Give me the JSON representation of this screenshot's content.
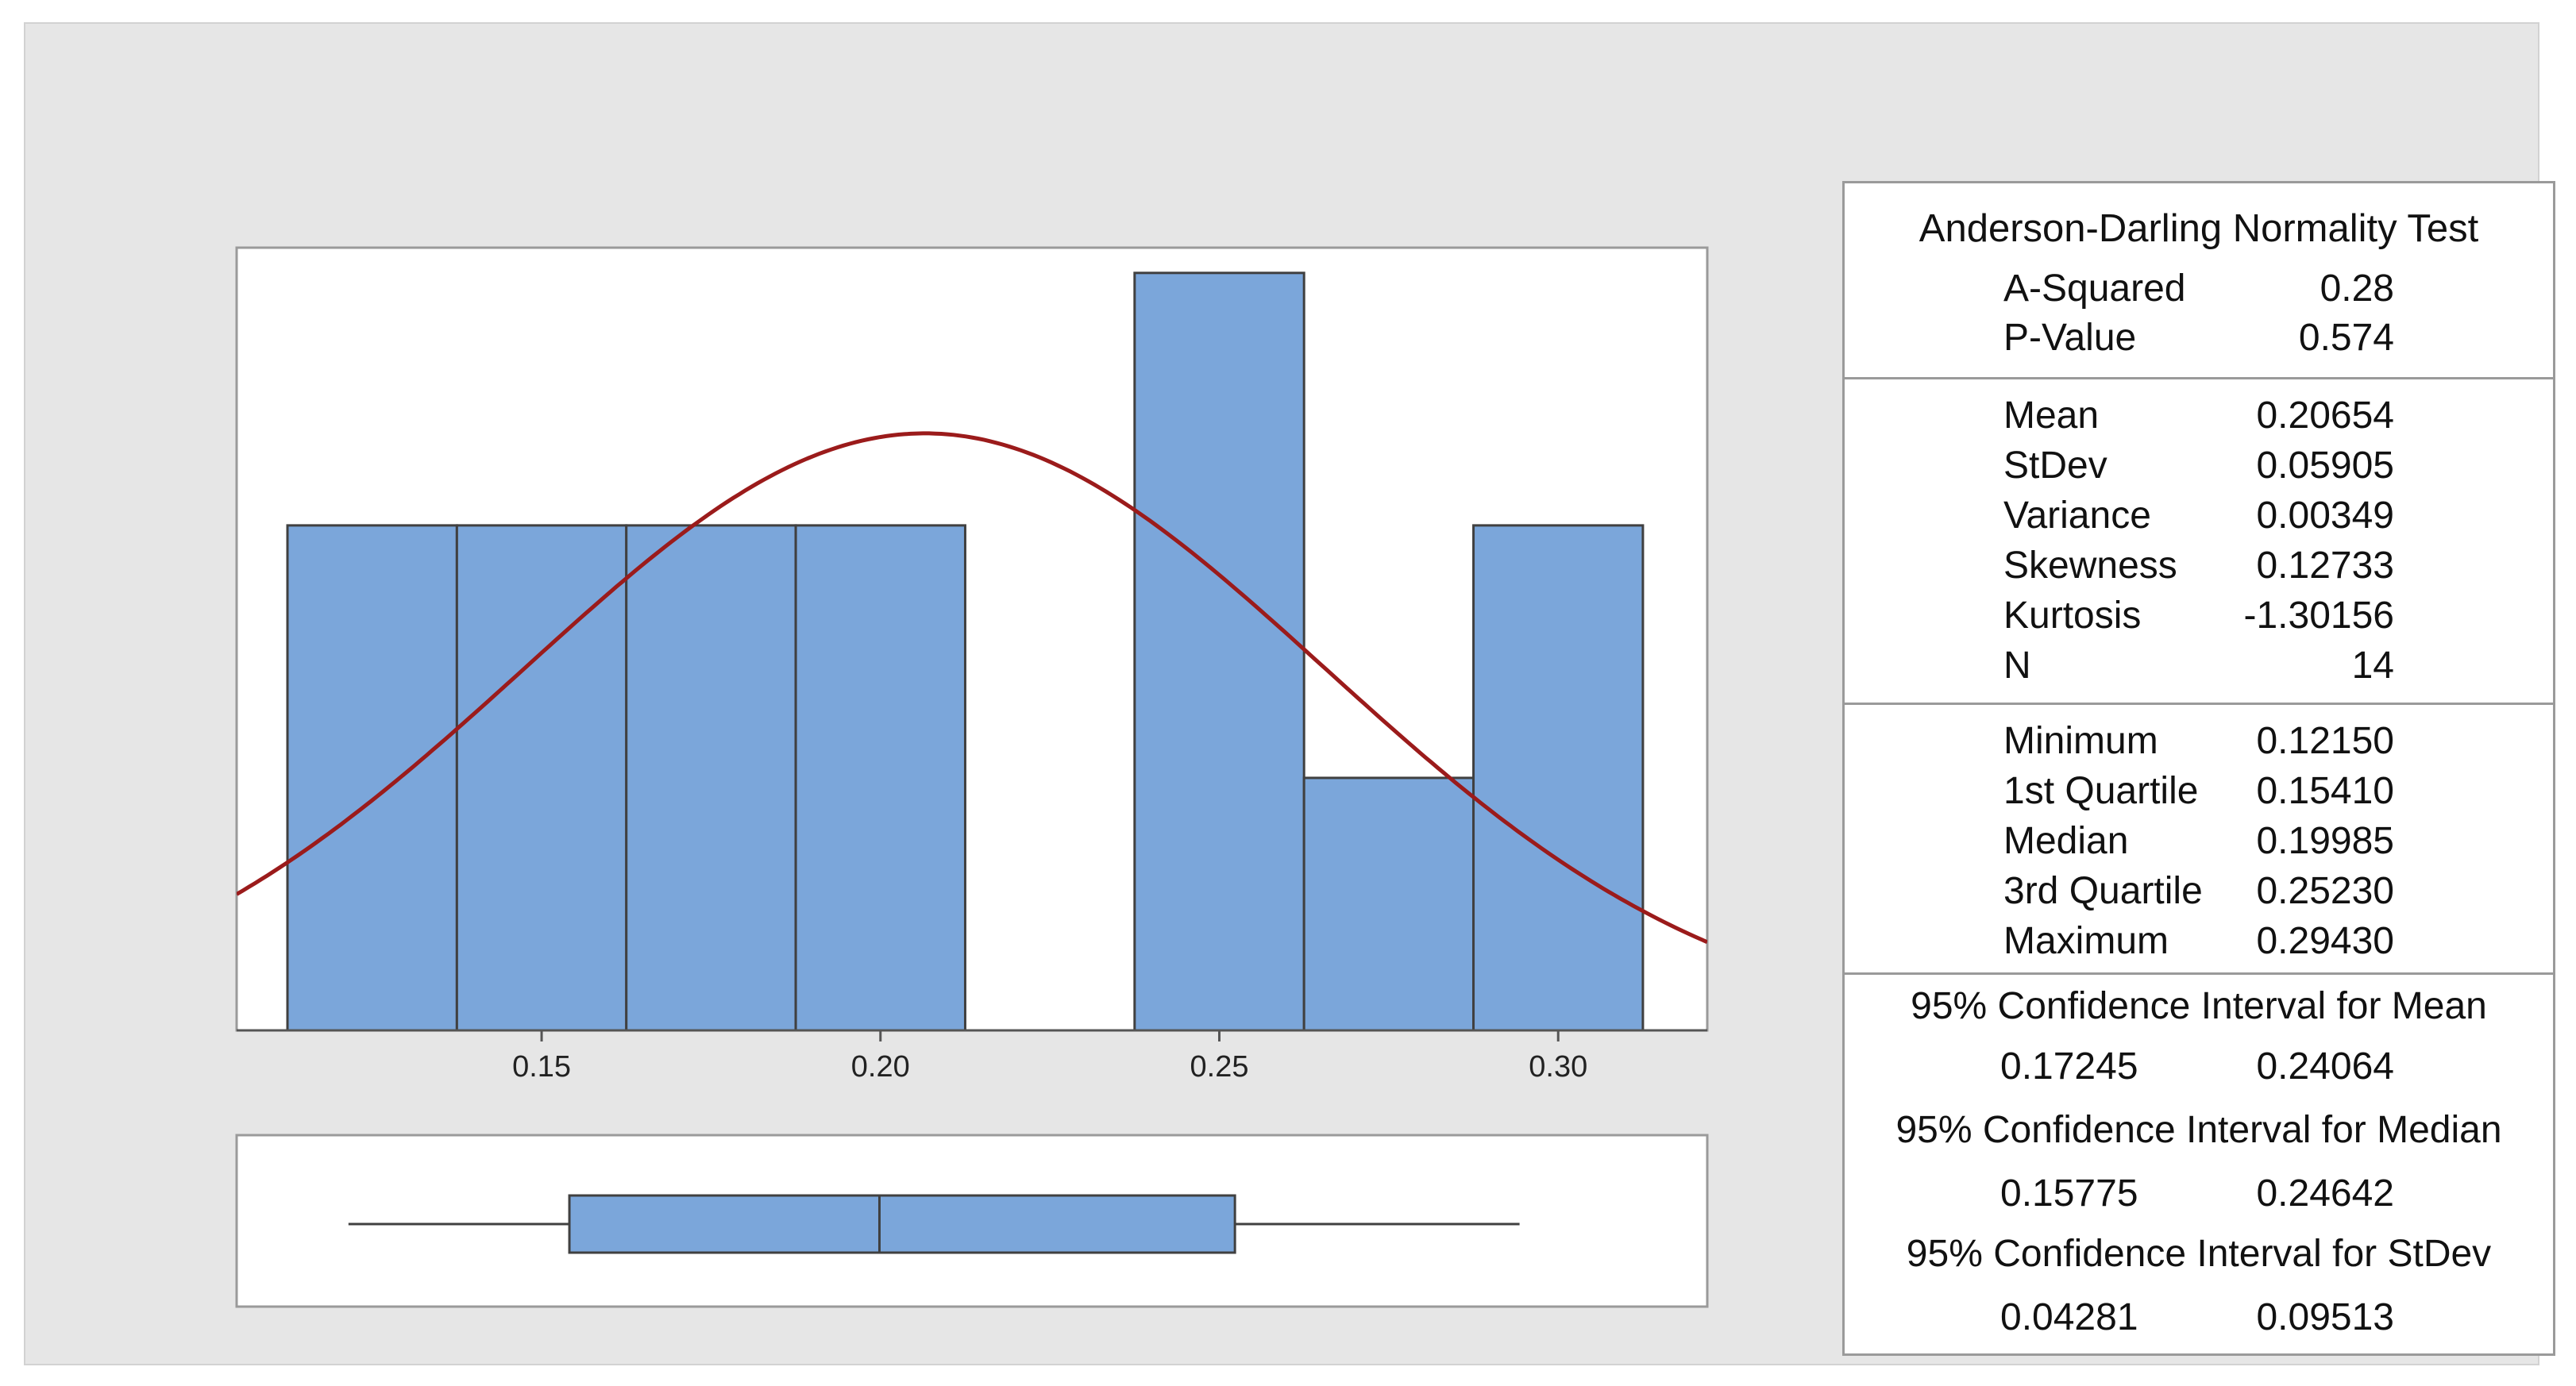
{
  "chart_data": [
    {
      "type": "histogram",
      "bins": [
        {
          "x0": 0.1125,
          "x1": 0.1375,
          "count": 2
        },
        {
          "x0": 0.1375,
          "x1": 0.1625,
          "count": 2
        },
        {
          "x0": 0.1625,
          "x1": 0.1875,
          "count": 2
        },
        {
          "x0": 0.1875,
          "x1": 0.2125,
          "count": 2
        },
        {
          "x0": 0.2125,
          "x1": 0.2375,
          "count": 0
        },
        {
          "x0": 0.2375,
          "x1": 0.2625,
          "count": 3
        },
        {
          "x0": 0.2625,
          "x1": 0.2875,
          "count": 1
        },
        {
          "x0": 0.2875,
          "x1": 0.3125,
          "count": 2
        }
      ],
      "x_ticks": [
        "0.15",
        "0.20",
        "0.25",
        "0.30"
      ],
      "x_tick_values": [
        0.15,
        0.2,
        0.25,
        0.3
      ],
      "xlim": [
        0.105,
        0.322
      ],
      "ylim": [
        0,
        3.1
      ],
      "normal_curve": {
        "mean": 0.20654,
        "stdev": 0.05905,
        "n": 14,
        "bin_width": 0.025
      },
      "colors": {
        "bar": "#7ba6da",
        "bar_edge": "#404040",
        "curve": "#9b1b1b"
      }
    },
    {
      "type": "boxplot",
      "min": 0.1215,
      "q1": 0.1541,
      "median": 0.19985,
      "q3": 0.2523,
      "max": 0.2943
    }
  ],
  "stats": {
    "ad_title": "Anderson-Darling Normality Test",
    "ad_rows": [
      {
        "label": "A-Squared",
        "value": "0.28"
      },
      {
        "label": "P-Value",
        "value": "0.574"
      }
    ],
    "moment_rows": [
      {
        "label": "Mean",
        "value": "0.20654"
      },
      {
        "label": "StDev",
        "value": "0.05905"
      },
      {
        "label": "Variance",
        "value": "0.00349"
      },
      {
        "label": "Skewness",
        "value": "0.12733"
      },
      {
        "label": "Kurtosis",
        "value": "-1.30156"
      },
      {
        "label": "N",
        "value": "14"
      }
    ],
    "quantile_rows": [
      {
        "label": "Minimum",
        "value": "0.12150"
      },
      {
        "label": "1st Quartile",
        "value": "0.15410"
      },
      {
        "label": "Median",
        "value": "0.19985"
      },
      {
        "label": "3rd Quartile",
        "value": "0.25230"
      },
      {
        "label": "Maximum",
        "value": "0.29430"
      }
    ],
    "ci": [
      {
        "title": "95% Confidence Interval for Mean",
        "low": "0.17245",
        "high": "0.24064"
      },
      {
        "title": "95% Confidence Interval for Median",
        "low": "0.15775",
        "high": "0.24642"
      },
      {
        "title": "95% Confidence Interval for StDev",
        "low": "0.04281",
        "high": "0.09513"
      }
    ]
  }
}
